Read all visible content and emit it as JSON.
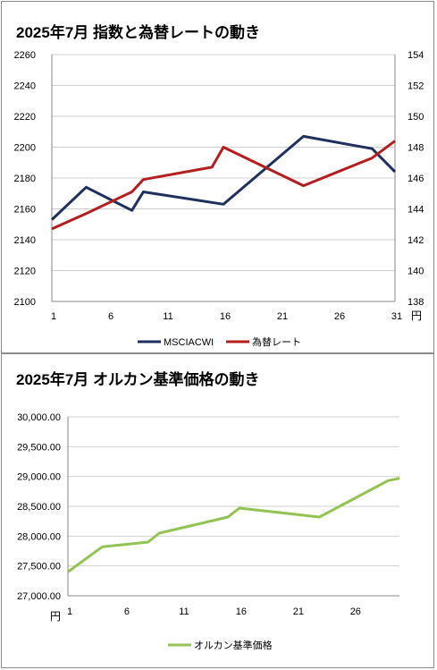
{
  "chart_data": [
    {
      "type": "line",
      "title": "2025年7月 指数と為替レートの動き",
      "x_ticks": [
        "1",
        "6",
        "11",
        "16",
        "21",
        "26",
        "31"
      ],
      "x_unit": "円",
      "xlim": [
        1,
        31
      ],
      "y_left": {
        "min": 2100,
        "max": 2260,
        "step": 20,
        "ticks": [
          "2100",
          "2120",
          "2140",
          "2160",
          "2180",
          "2200",
          "2220",
          "2240",
          "2260"
        ]
      },
      "y_right": {
        "min": 138,
        "max": 154,
        "step": 2,
        "ticks": [
          "138",
          "140",
          "142",
          "144",
          "146",
          "148",
          "150",
          "152",
          "154"
        ]
      },
      "grid": "horizontal",
      "legend_position": "bottom",
      "series": [
        {
          "name": "MSCIACWI",
          "axis": "left",
          "color": "#1f2f5e",
          "x": [
            1,
            4,
            8,
            9,
            16,
            23,
            29,
            31
          ],
          "y": [
            2153,
            2174,
            2159,
            2171,
            2163,
            2207,
            2199,
            2184
          ]
        },
        {
          "name": "為替レート",
          "axis": "right",
          "color": "#b41e1e",
          "x": [
            1,
            4,
            8,
            9,
            15,
            16,
            23,
            29,
            31
          ],
          "y": [
            142.7,
            143.7,
            145.1,
            145.9,
            146.7,
            148.0,
            145.5,
            147.3,
            148.4
          ]
        }
      ]
    },
    {
      "type": "line",
      "title": "2025年7月 オルカン基準価格の動き",
      "x_ticks": [
        "1",
        "6",
        "11",
        "16",
        "21",
        "26"
      ],
      "y_unit": "円",
      "xlim": [
        1,
        30
      ],
      "y": {
        "min": 27000,
        "max": 30000,
        "step": 500,
        "ticks": [
          "27,000.00",
          "27,500.00",
          "28,000.00",
          "28,500.00",
          "29,000.00",
          "29,500.00",
          "30,000.00"
        ]
      },
      "grid": "horizontal",
      "legend_position": "bottom",
      "series": [
        {
          "name": "オルカン基準価格",
          "color": "#92c353",
          "x": [
            1,
            4,
            8,
            9,
            15,
            16,
            23,
            29,
            30
          ],
          "y": [
            27400,
            27820,
            27900,
            28050,
            28320,
            28470,
            28320,
            28930,
            28970
          ]
        }
      ]
    }
  ]
}
